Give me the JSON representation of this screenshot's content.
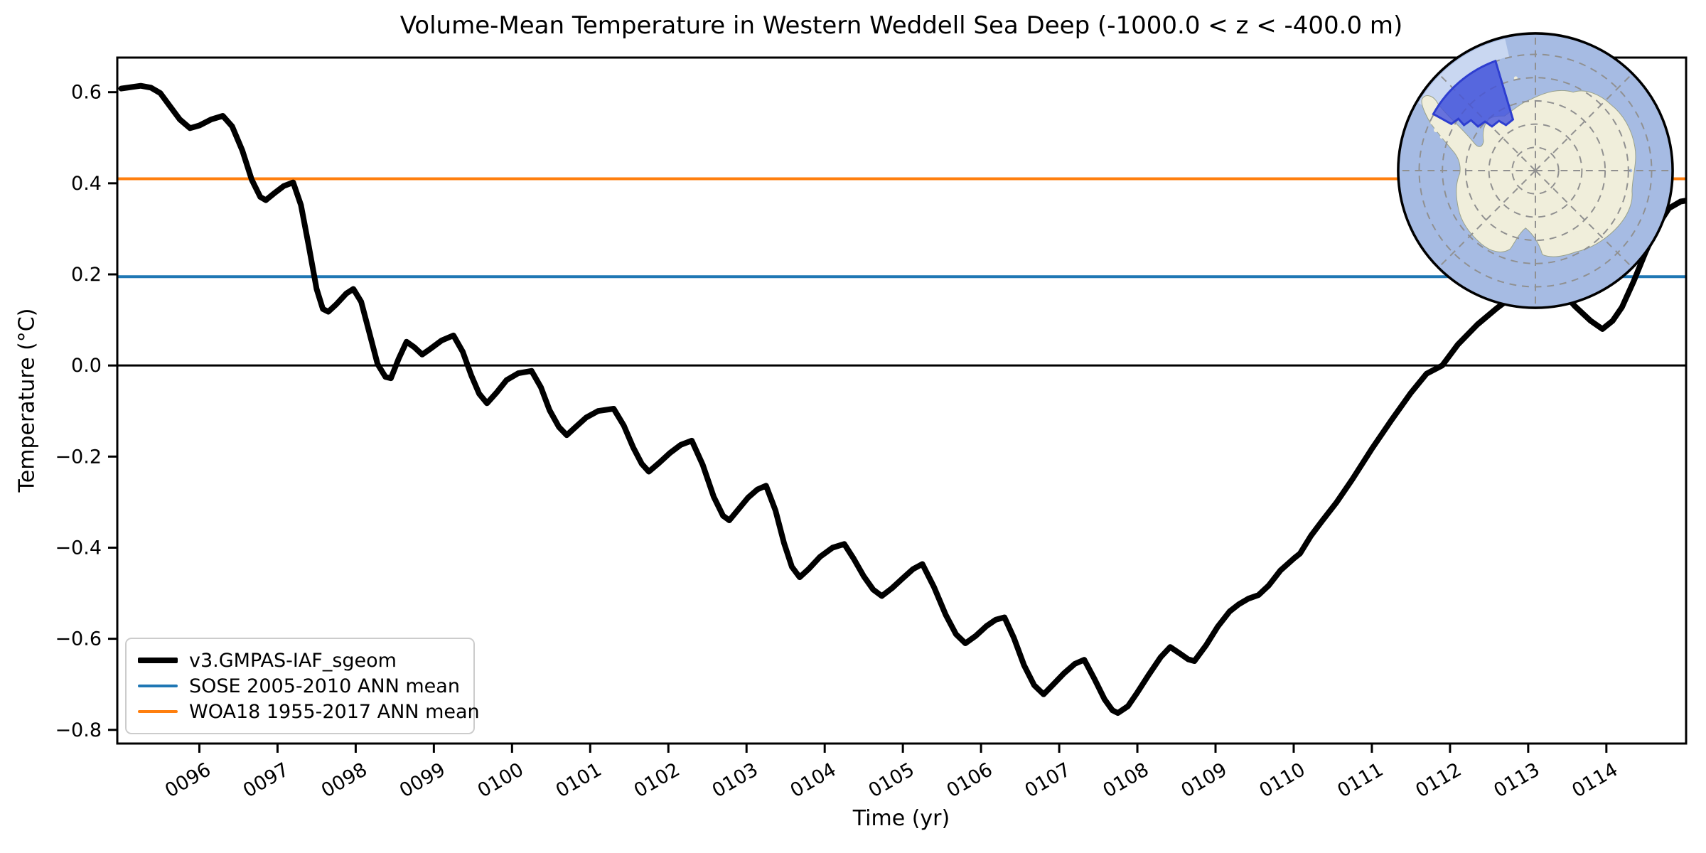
{
  "title": "Volume-Mean Temperature in Western Weddell Sea Deep (-1000.0 < z < -400.0 m)",
  "axes": {
    "xlabel": "Time (yr)",
    "ylabel": "Temperature (°C)"
  },
  "legend": {
    "position": "lower left",
    "items": [
      {
        "label": "v3.GMPAS-IAF_sgeom",
        "color": "#000000",
        "thickness": 8
      },
      {
        "label": "SOSE 2005-2010 ANN mean",
        "color": "#1f77b4",
        "thickness": 4
      },
      {
        "label": "WOA18 1955-2017 ANN mean",
        "color": "#ff7f0e",
        "thickness": 4
      }
    ]
  },
  "inset_map": {
    "description": "South polar stereographic map of Antarctica with highlighted region",
    "highlighted_region": "Western Weddell Sea",
    "ocean_color": "#a6bbe3",
    "ocean_light_color": "#c9d7f1",
    "land_color": "#f0eedb",
    "region_fill": "#4050dd",
    "region_edge": "#2e3ed0",
    "graticule_color": "#909090",
    "outline_color": "#000000"
  },
  "chart_data": {
    "type": "line",
    "title": "Volume-Mean Temperature in Western Weddell Sea Deep (-1000.0 < z < -400.0 m)",
    "xlabel": "Time (yr)",
    "ylabel": "Temperature (°C)",
    "xlim": [
      94.95,
      115.02
    ],
    "ylim": [
      -0.83,
      0.676
    ],
    "grid": false,
    "legend_position": "lower left",
    "x_ticks": [
      {
        "value": 96,
        "label": "0096"
      },
      {
        "value": 97,
        "label": "0097"
      },
      {
        "value": 98,
        "label": "0098"
      },
      {
        "value": 99,
        "label": "0099"
      },
      {
        "value": 100,
        "label": "0100"
      },
      {
        "value": 101,
        "label": "0101"
      },
      {
        "value": 102,
        "label": "0102"
      },
      {
        "value": 103,
        "label": "0103"
      },
      {
        "value": 104,
        "label": "0104"
      },
      {
        "value": 105,
        "label": "0105"
      },
      {
        "value": 106,
        "label": "0106"
      },
      {
        "value": 107,
        "label": "0107"
      },
      {
        "value": 108,
        "label": "0108"
      },
      {
        "value": 109,
        "label": "0109"
      },
      {
        "value": 110,
        "label": "0110"
      },
      {
        "value": 111,
        "label": "0111"
      },
      {
        "value": 112,
        "label": "0112"
      },
      {
        "value": 113,
        "label": "0113"
      },
      {
        "value": 114,
        "label": "0114"
      }
    ],
    "y_ticks": [
      {
        "value": 0.6,
        "label": "0.6"
      },
      {
        "value": 0.4,
        "label": "0.4"
      },
      {
        "value": 0.2,
        "label": "0.2"
      },
      {
        "value": 0.0,
        "label": "0.0"
      },
      {
        "value": -0.2,
        "label": "−0.2"
      },
      {
        "value": -0.4,
        "label": "−0.4"
      },
      {
        "value": -0.6,
        "label": "−0.6"
      },
      {
        "value": -0.8,
        "label": "−0.8"
      }
    ],
    "reference_lines": [
      {
        "name": "zero-line",
        "value": 0.0,
        "color": "#000000",
        "width": 3
      },
      {
        "name": "SOSE 2005-2010 ANN mean",
        "value": 0.195,
        "color": "#1f77b4",
        "width": 4
      },
      {
        "name": "WOA18 1955-2017 ANN mean",
        "value": 0.41,
        "color": "#ff7f0e",
        "width": 4
      }
    ],
    "series": [
      {
        "name": "v3.GMPAS-IAF_sgeom",
        "color": "#000000",
        "width": 8,
        "points": [
          [
            95.0,
            0.608
          ],
          [
            95.12,
            0.611
          ],
          [
            95.25,
            0.614
          ],
          [
            95.38,
            0.61
          ],
          [
            95.5,
            0.598
          ],
          [
            95.62,
            0.57
          ],
          [
            95.75,
            0.54
          ],
          [
            95.88,
            0.521
          ],
          [
            96.0,
            0.527
          ],
          [
            96.15,
            0.54
          ],
          [
            96.3,
            0.548
          ],
          [
            96.42,
            0.525
          ],
          [
            96.55,
            0.472
          ],
          [
            96.67,
            0.408
          ],
          [
            96.78,
            0.37
          ],
          [
            96.85,
            0.363
          ],
          [
            96.95,
            0.377
          ],
          [
            97.08,
            0.394
          ],
          [
            97.2,
            0.402
          ],
          [
            97.3,
            0.352
          ],
          [
            97.4,
            0.262
          ],
          [
            97.5,
            0.168
          ],
          [
            97.58,
            0.124
          ],
          [
            97.65,
            0.118
          ],
          [
            97.75,
            0.134
          ],
          [
            97.88,
            0.158
          ],
          [
            97.97,
            0.168
          ],
          [
            98.07,
            0.14
          ],
          [
            98.17,
            0.075
          ],
          [
            98.28,
            0.003
          ],
          [
            98.38,
            -0.025
          ],
          [
            98.45,
            -0.028
          ],
          [
            98.55,
            0.015
          ],
          [
            98.65,
            0.052
          ],
          [
            98.75,
            0.04
          ],
          [
            98.85,
            0.024
          ],
          [
            98.95,
            0.036
          ],
          [
            99.1,
            0.055
          ],
          [
            99.25,
            0.066
          ],
          [
            99.37,
            0.03
          ],
          [
            99.48,
            -0.022
          ],
          [
            99.58,
            -0.062
          ],
          [
            99.68,
            -0.083
          ],
          [
            99.8,
            -0.06
          ],
          [
            99.93,
            -0.032
          ],
          [
            100.08,
            -0.017
          ],
          [
            100.25,
            -0.012
          ],
          [
            100.37,
            -0.048
          ],
          [
            100.48,
            -0.098
          ],
          [
            100.6,
            -0.135
          ],
          [
            100.7,
            -0.153
          ],
          [
            100.82,
            -0.134
          ],
          [
            100.95,
            -0.114
          ],
          [
            101.1,
            -0.1
          ],
          [
            101.3,
            -0.095
          ],
          [
            101.43,
            -0.132
          ],
          [
            101.55,
            -0.18
          ],
          [
            101.66,
            -0.216
          ],
          [
            101.75,
            -0.233
          ],
          [
            101.88,
            -0.214
          ],
          [
            102.02,
            -0.192
          ],
          [
            102.16,
            -0.174
          ],
          [
            102.3,
            -0.165
          ],
          [
            102.44,
            -0.218
          ],
          [
            102.58,
            -0.288
          ],
          [
            102.7,
            -0.33
          ],
          [
            102.78,
            -0.34
          ],
          [
            102.9,
            -0.315
          ],
          [
            103.02,
            -0.29
          ],
          [
            103.14,
            -0.272
          ],
          [
            103.25,
            -0.264
          ],
          [
            103.37,
            -0.318
          ],
          [
            103.48,
            -0.39
          ],
          [
            103.58,
            -0.442
          ],
          [
            103.68,
            -0.465
          ],
          [
            103.8,
            -0.446
          ],
          [
            103.94,
            -0.42
          ],
          [
            104.1,
            -0.4
          ],
          [
            104.25,
            -0.392
          ],
          [
            104.37,
            -0.424
          ],
          [
            104.5,
            -0.463
          ],
          [
            104.62,
            -0.492
          ],
          [
            104.73,
            -0.506
          ],
          [
            104.86,
            -0.489
          ],
          [
            105.0,
            -0.467
          ],
          [
            105.13,
            -0.447
          ],
          [
            105.25,
            -0.436
          ],
          [
            105.4,
            -0.487
          ],
          [
            105.55,
            -0.548
          ],
          [
            105.68,
            -0.59
          ],
          [
            105.8,
            -0.61
          ],
          [
            105.93,
            -0.594
          ],
          [
            106.07,
            -0.572
          ],
          [
            106.19,
            -0.558
          ],
          [
            106.3,
            -0.553
          ],
          [
            106.42,
            -0.598
          ],
          [
            106.55,
            -0.658
          ],
          [
            106.68,
            -0.702
          ],
          [
            106.8,
            -0.722
          ],
          [
            106.92,
            -0.701
          ],
          [
            107.06,
            -0.676
          ],
          [
            107.2,
            -0.655
          ],
          [
            107.32,
            -0.646
          ],
          [
            107.45,
            -0.688
          ],
          [
            107.58,
            -0.733
          ],
          [
            107.68,
            -0.757
          ],
          [
            107.75,
            -0.763
          ],
          [
            107.88,
            -0.748
          ],
          [
            108.0,
            -0.718
          ],
          [
            108.15,
            -0.678
          ],
          [
            108.3,
            -0.64
          ],
          [
            108.42,
            -0.618
          ],
          [
            108.55,
            -0.633
          ],
          [
            108.65,
            -0.645
          ],
          [
            108.73,
            -0.649
          ],
          [
            108.88,
            -0.614
          ],
          [
            109.03,
            -0.573
          ],
          [
            109.18,
            -0.54
          ],
          [
            109.3,
            -0.524
          ],
          [
            109.42,
            -0.512
          ],
          [
            109.55,
            -0.504
          ],
          [
            109.68,
            -0.483
          ],
          [
            109.83,
            -0.45
          ],
          [
            110.0,
            -0.424
          ],
          [
            110.08,
            -0.413
          ],
          [
            110.22,
            -0.374
          ],
          [
            110.36,
            -0.342
          ],
          [
            110.55,
            -0.3
          ],
          [
            110.75,
            -0.25
          ],
          [
            111.0,
            -0.183
          ],
          [
            111.25,
            -0.12
          ],
          [
            111.5,
            -0.06
          ],
          [
            111.7,
            -0.018
          ],
          [
            111.9,
            0.0
          ],
          [
            112.1,
            0.046
          ],
          [
            112.35,
            0.09
          ],
          [
            112.6,
            0.126
          ],
          [
            112.85,
            0.158
          ],
          [
            113.05,
            0.178
          ],
          [
            113.22,
            0.186
          ],
          [
            113.4,
            0.168
          ],
          [
            113.6,
            0.13
          ],
          [
            113.8,
            0.098
          ],
          [
            113.95,
            0.08
          ],
          [
            114.08,
            0.098
          ],
          [
            114.2,
            0.128
          ],
          [
            114.35,
            0.185
          ],
          [
            114.5,
            0.248
          ],
          [
            114.65,
            0.305
          ],
          [
            114.8,
            0.345
          ],
          [
            114.95,
            0.36
          ],
          [
            115.02,
            0.362
          ]
        ]
      }
    ]
  }
}
